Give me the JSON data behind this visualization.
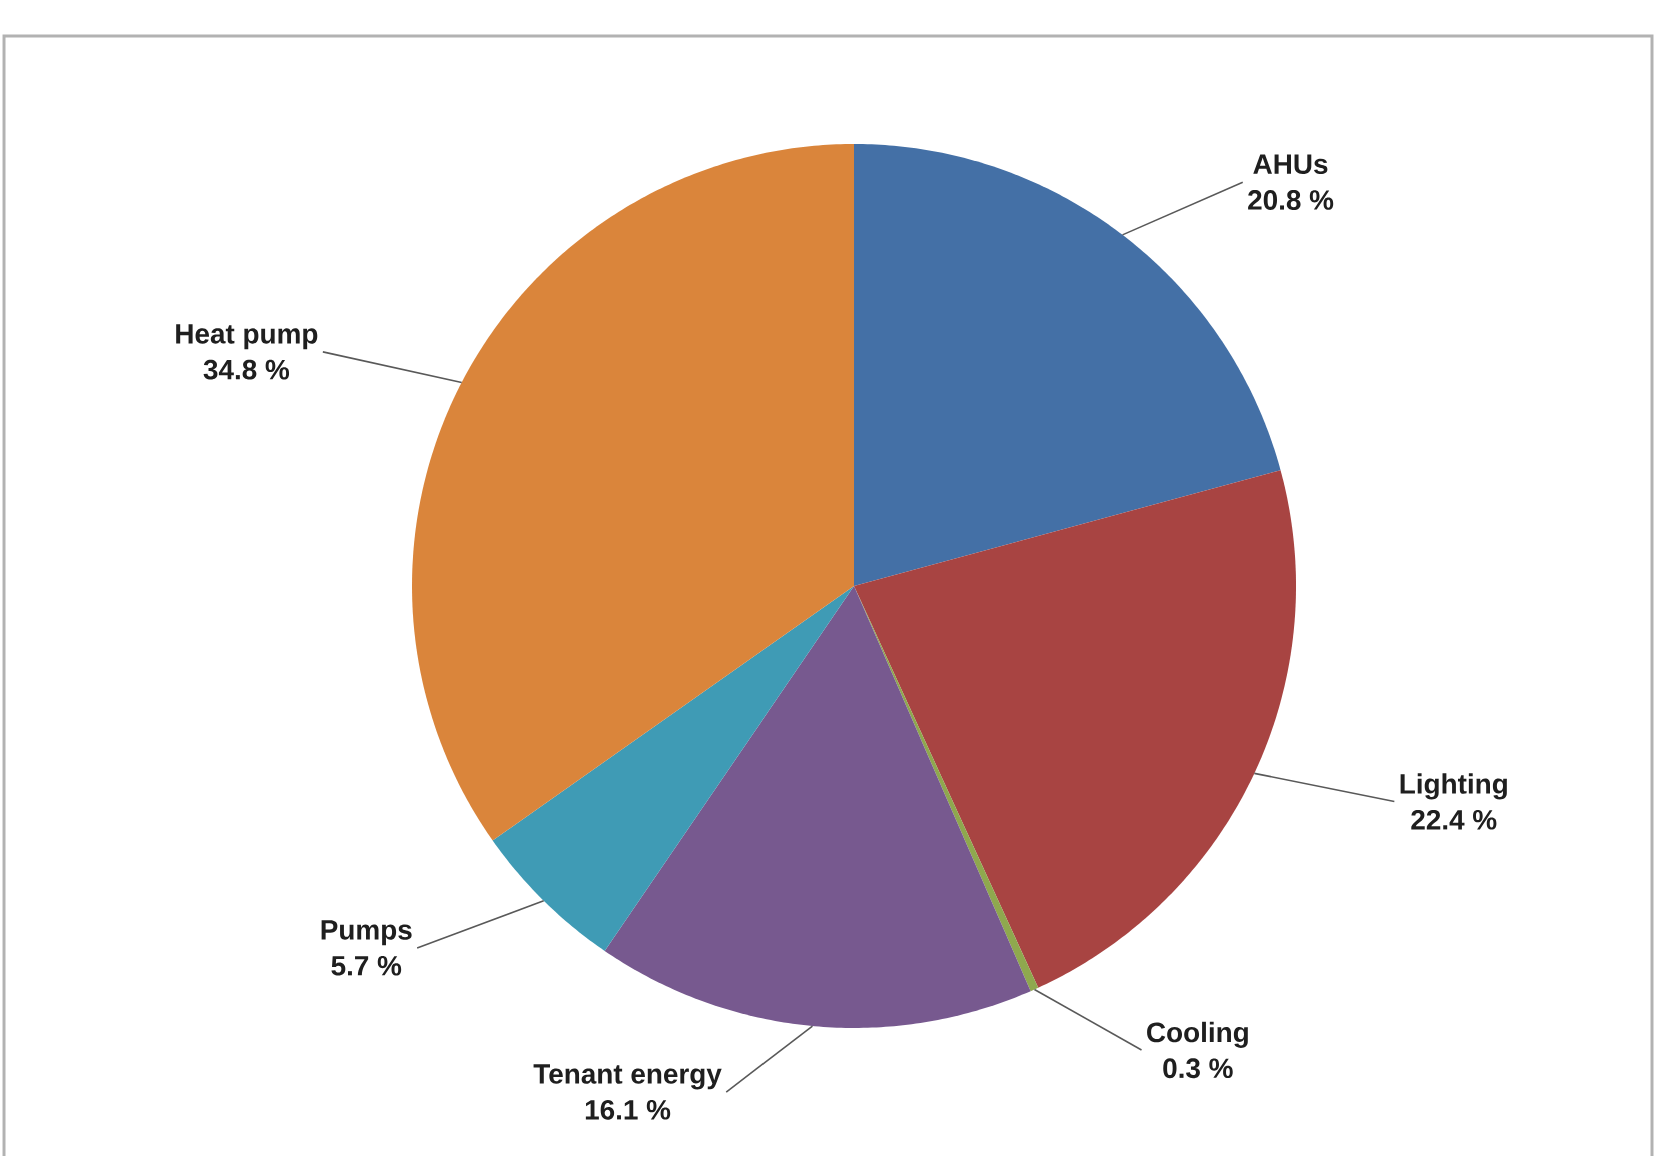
{
  "chart_data": {
    "type": "pie",
    "categories": [
      "AHUs",
      "Lighting",
      "Cooling",
      "Tenant energy",
      "Pumps",
      "Heat pump"
    ],
    "values": [
      20.8,
      22.4,
      0.3,
      16.1,
      5.7,
      34.8
    ],
    "value_labels": [
      "20.8 %",
      "22.4 %",
      "0.3 %",
      "16.1 %",
      "5.7 %",
      "34.8 %"
    ],
    "colors": [
      "#4470a6",
      "#a84442",
      "#8fa84e",
      "#77598f",
      "#3f9bb5",
      "#da853b"
    ]
  }
}
